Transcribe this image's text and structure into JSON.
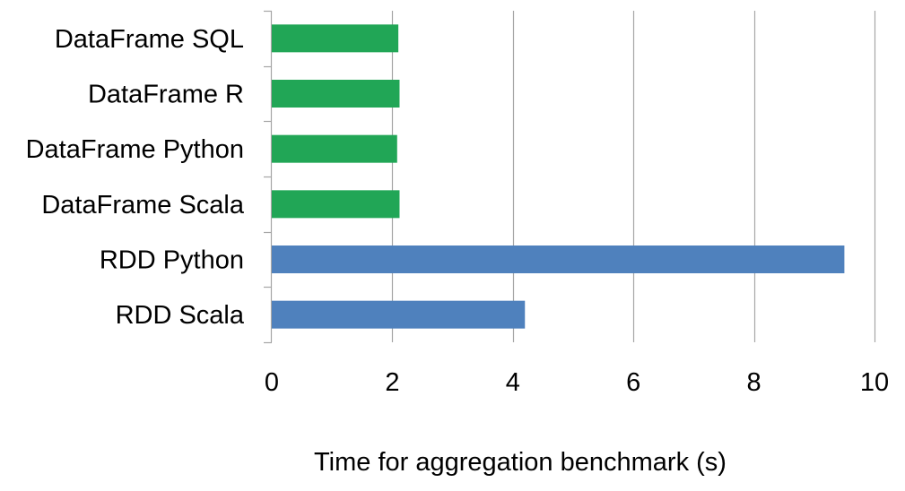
{
  "chart_data": {
    "type": "bar",
    "orientation": "horizontal",
    "categories": [
      "DataFrame SQL",
      "DataFrame R",
      "DataFrame Python",
      "DataFrame Scala",
      "RDD Python",
      "RDD Scala"
    ],
    "values": [
      2.1,
      2.12,
      2.08,
      2.12,
      9.5,
      4.2
    ],
    "bar_colors": [
      "#21a656",
      "#21a656",
      "#21a656",
      "#21a656",
      "#4f81bd",
      "#4f81bd"
    ],
    "xlim": [
      0,
      10
    ],
    "xticks": [
      0,
      2,
      4,
      6,
      8,
      10
    ],
    "xlabel": "Time for aggregation benchmark (s)",
    "ylabel": "",
    "title": "",
    "grid": "vertical",
    "legend": "none",
    "colors": {
      "dataframe": "#21a656",
      "rdd": "#4f81bd",
      "grid": "#a6a6a6",
      "axis": "#a6a6a6"
    }
  }
}
